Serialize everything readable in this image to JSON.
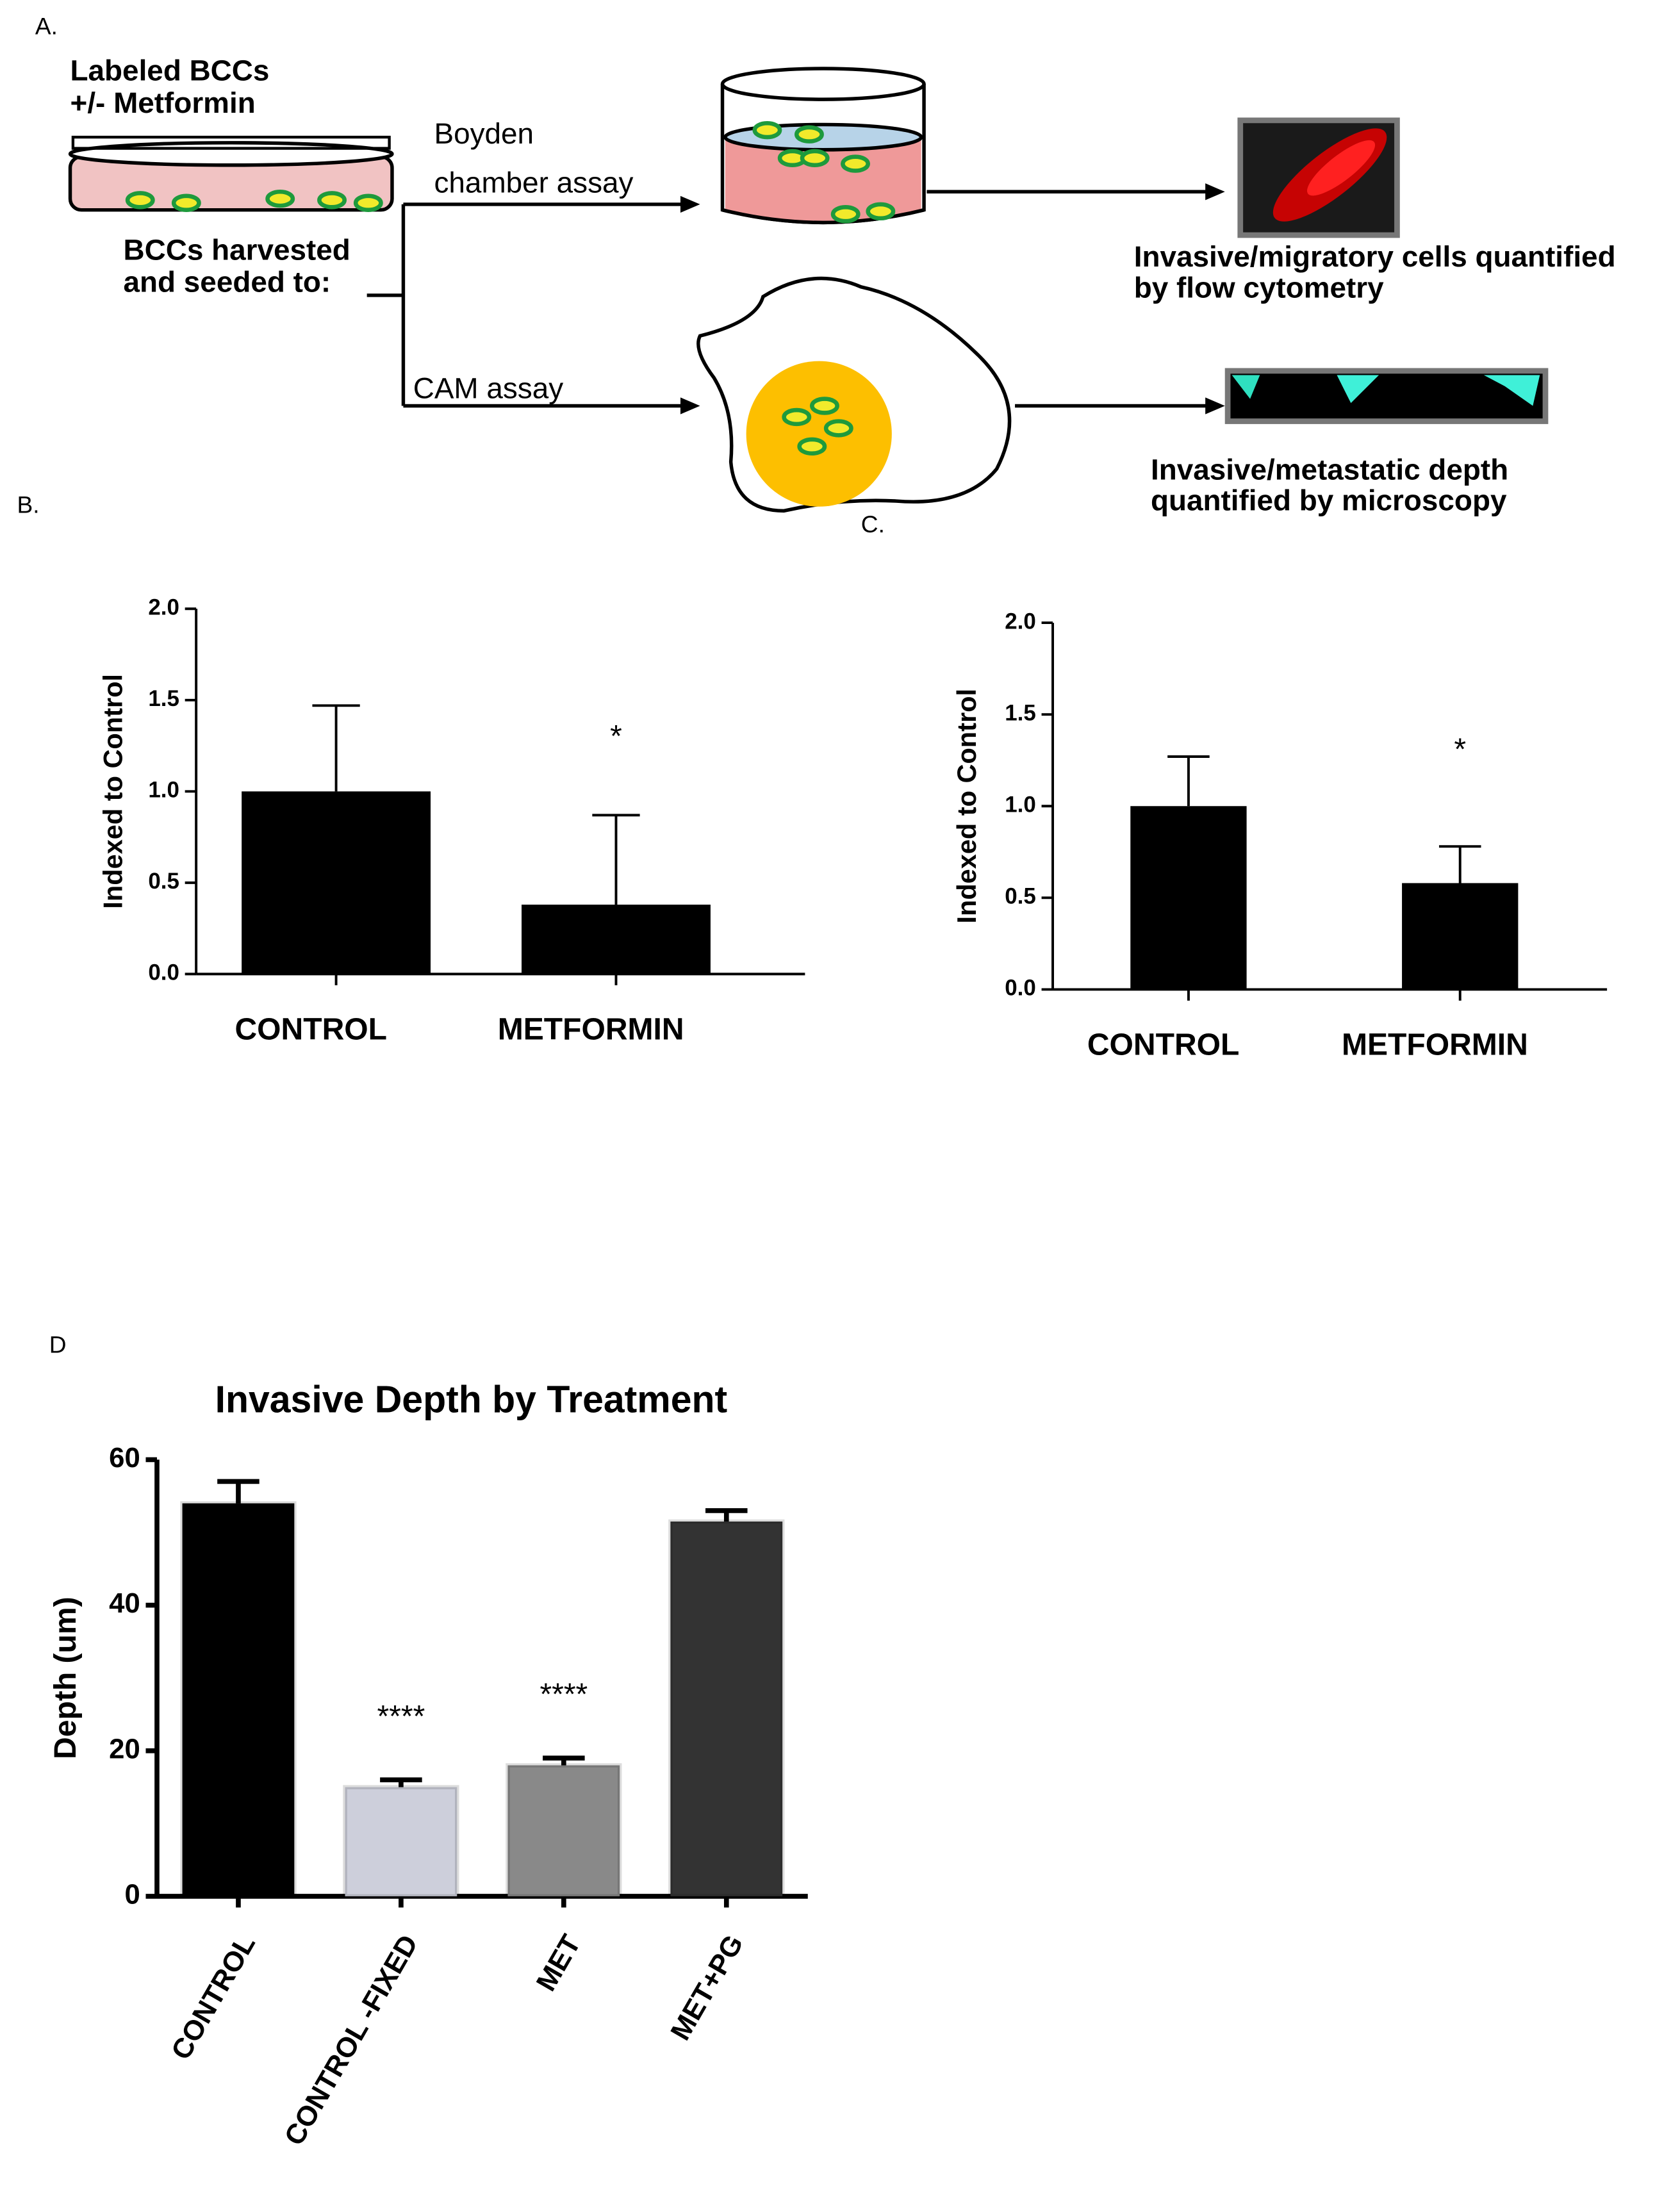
{
  "panel_labels": [
    "A.",
    "B.",
    "C.",
    "D"
  ],
  "diagram": {
    "dish_label": [
      "Labeled BCCs",
      "+/- Metformin"
    ],
    "harvest_label": [
      "BCCs harvested",
      "and seeded to:"
    ],
    "boyden_label": [
      "Boyden",
      "chamber assay"
    ],
    "cam_label": [
      "CAM assay"
    ],
    "flow_label": [
      "Invasive/migratory cells quantified",
      "by flow cytometry"
    ],
    "microscopy_label": [
      "Invasive/metastatic depth",
      "quantified by microscopy"
    ]
  },
  "chart_data": [
    {
      "type": "bar",
      "ylabel": "Indexed to Control",
      "categories": [
        "CONTROL",
        "METFORMIN"
      ],
      "values": [
        1.0,
        0.38
      ],
      "errors": [
        0.47,
        0.49
      ],
      "significance": [
        null,
        "*"
      ],
      "color": "#000000",
      "ylim": [
        0,
        2
      ],
      "yticks": [
        {
          "value": 0,
          "label": "0.0"
        },
        {
          "value": 0.5,
          "label": "0.5"
        },
        {
          "value": 1,
          "label": "1.0"
        },
        {
          "value": 1.5,
          "label": "1.5"
        },
        {
          "value": 2,
          "label": "2.0"
        }
      ]
    },
    {
      "type": "bar",
      "ylabel": "Indexed to Control",
      "categories": [
        "CONTROL",
        "METFORMIN"
      ],
      "values": [
        1.0,
        0.58
      ],
      "errors": [
        0.27,
        0.2
      ],
      "significance": [
        null,
        "*"
      ],
      "color": "#000000",
      "ylim": [
        0,
        2
      ],
      "yticks": [
        {
          "value": 0,
          "label": "0.0"
        },
        {
          "value": 0.5,
          "label": "0.5"
        },
        {
          "value": 1,
          "label": "1.0"
        },
        {
          "value": 1.5,
          "label": "1.5"
        },
        {
          "value": 2,
          "label": "2.0"
        }
      ]
    },
    {
      "type": "bar",
      "title": "Invasive Depth by Treatment",
      "ylabel": "Depth (um)",
      "categories": [
        "CONTROL",
        "CONTROL -FIXED",
        "MET",
        "MET+PG"
      ],
      "values": [
        54,
        15,
        18,
        51.5
      ],
      "errors": [
        3,
        1,
        1,
        1.5
      ],
      "significance": [
        null,
        "****",
        "****",
        null
      ],
      "colors": [
        "#000000",
        "#cdcfdb",
        "#898989",
        "#333333"
      ],
      "ylim": [
        0,
        60
      ],
      "yticks": [
        0,
        20,
        40,
        60
      ]
    }
  ]
}
